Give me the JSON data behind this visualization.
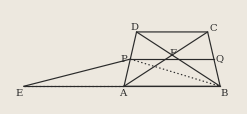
{
  "points": {
    "A": [
      118,
      0
    ],
    "B": [
      210,
      0
    ],
    "C": [
      198,
      52
    ],
    "D": [
      130,
      52
    ],
    "E": [
      22,
      0
    ],
    "P": [
      124,
      26
    ],
    "Q": [
      204,
      26
    ],
    "F": [
      160,
      32
    ]
  },
  "bg_color": "#ede8df",
  "line_color": "#2a2a2a",
  "label_fontsize": 7.2,
  "figsize": [
    2.47,
    1.15
  ],
  "dpi": 100,
  "xlim": [
    0,
    235
  ],
  "ylim": [
    -15,
    72
  ]
}
